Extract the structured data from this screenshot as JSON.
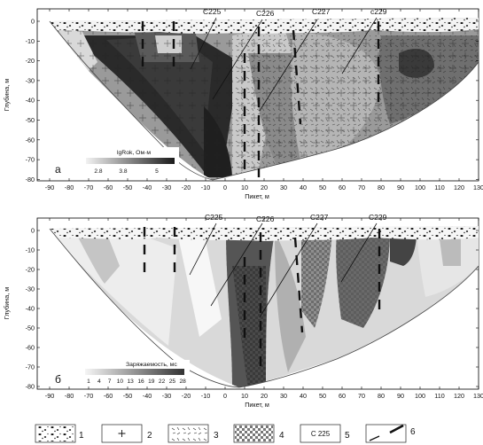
{
  "panels": [
    {
      "id": "a",
      "letter": "а",
      "ylabel": "Глубина, м",
      "xlabel": "Пикет, м",
      "x_ticks": [
        -90,
        -80,
        -70,
        -60,
        -50,
        -40,
        -30,
        -20,
        -10,
        0,
        10,
        20,
        30,
        40,
        50,
        60,
        70,
        80,
        90,
        100,
        110,
        120,
        130
      ],
      "y_ticks": [
        0,
        -10,
        -20,
        -30,
        -40,
        -50,
        -60,
        -70,
        -80
      ],
      "boreholes": [
        "C225",
        "C226",
        "C227",
        "c229"
      ],
      "legend": {
        "title": "lgRok, Ом·м",
        "values": [
          "2.8",
          "3.8",
          "5"
        ]
      },
      "colors": {
        "low": "#f2f2f2",
        "high": "#1a1a1a"
      }
    },
    {
      "id": "b",
      "letter": "б",
      "ylabel": "Глубина, м",
      "xlabel": "Пикет, м",
      "x_ticks": [
        -90,
        -80,
        -70,
        -60,
        -50,
        -40,
        -30,
        -20,
        -10,
        0,
        10,
        20,
        30,
        40,
        50,
        60,
        70,
        80,
        90,
        100,
        110,
        120,
        130
      ],
      "y_ticks": [
        0,
        -10,
        -20,
        -30,
        -40,
        -50,
        -60,
        -70,
        -80
      ],
      "boreholes": [
        "C225",
        "C226",
        "C227",
        "C229"
      ],
      "legend": {
        "title": "Заряжаемость, мс",
        "values": [
          "1",
          "4",
          "7",
          "10",
          "13",
          "16",
          "19",
          "22",
          "25",
          "28"
        ]
      },
      "colors": {
        "low": "#f5f5f5",
        "high": "#333333"
      }
    }
  ],
  "symbols": [
    {
      "num": "1",
      "kind": "gravel",
      "icon": "gravel-dots-icon"
    },
    {
      "num": "2",
      "kind": "cross",
      "icon": "cross-icon"
    },
    {
      "num": "3",
      "kind": "dashes",
      "icon": "dashes-icon"
    },
    {
      "num": "4",
      "kind": "checker",
      "icon": "checker-icon"
    },
    {
      "num": "5",
      "kind": "label",
      "text": "C 225",
      "icon": "borehole-label-icon"
    },
    {
      "num": "6",
      "kind": "line",
      "icon": "dashed-fault-line-icon"
    }
  ]
}
